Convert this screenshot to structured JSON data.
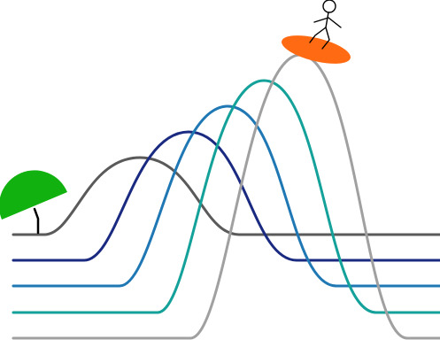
{
  "colors": {
    "background": "#ffffff",
    "wave_colors": [
      "#5a5a5a",
      "#1a2a80",
      "#1f78b4",
      "#13a19a",
      "#a0a0a0"
    ],
    "umbrella": "#11b10f",
    "umbrella_handle": "#000000",
    "surfboard": "#ff6a12",
    "stick_figure": "#000000"
  },
  "scene": {
    "description_items": [
      "umbrella-icon",
      "wave-lines",
      "surfboard-icon",
      "stick-figure-icon"
    ],
    "wave_count": 5
  }
}
